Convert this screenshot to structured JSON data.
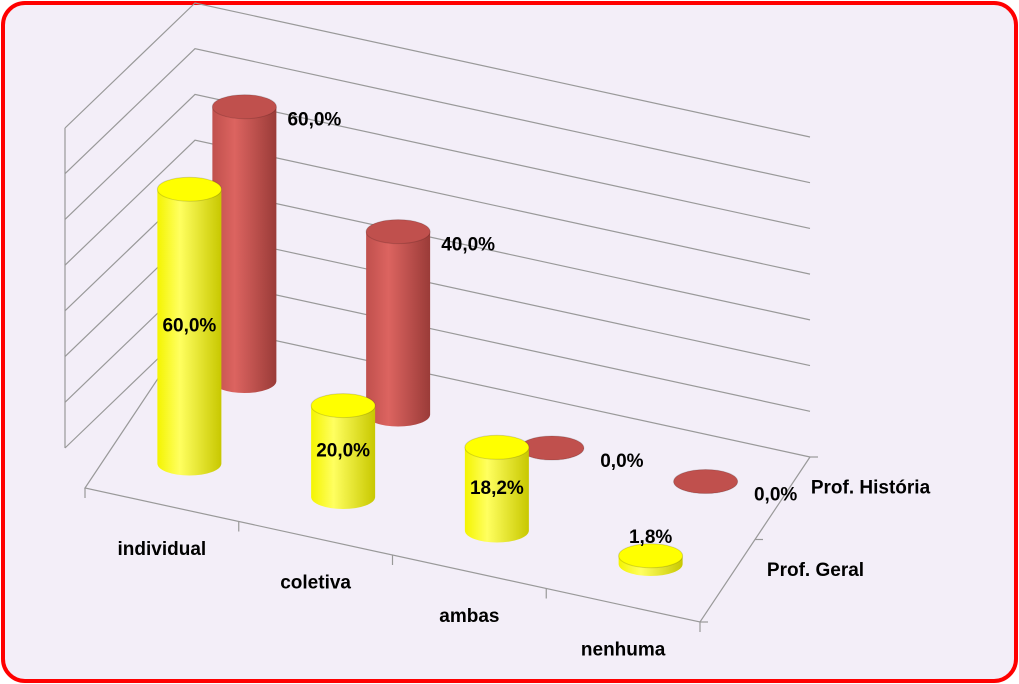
{
  "chart_data": {
    "type": "bar3d",
    "categories": [
      "individual",
      "coletiva",
      "ambas",
      "nenhuma"
    ],
    "series": [
      {
        "name": "Prof. Geral",
        "color": "#ffff00",
        "values": [
          60,
          20,
          18.2,
          1.8
        ],
        "value_labels": [
          "60,0%",
          "20,0%",
          "18,2%",
          "1,8%"
        ]
      },
      {
        "name": "Prof. História",
        "color": "#c0504d",
        "values": [
          60,
          40,
          0,
          0
        ],
        "value_labels": [
          "60,0%",
          "40,0%",
          "0,0%",
          "0,0%"
        ]
      }
    ],
    "ylim": [
      0,
      70
    ],
    "yticks": [
      0,
      10,
      20,
      30,
      40,
      50,
      60,
      70
    ],
    "grid": true
  }
}
